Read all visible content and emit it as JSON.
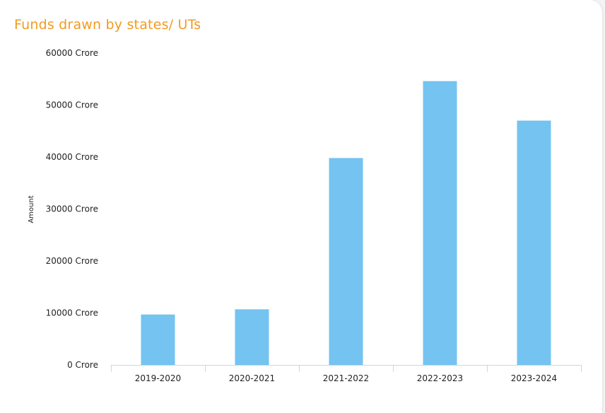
{
  "card": {
    "title": "Funds drawn by states/ UTs"
  },
  "colors": {
    "title": "#f39a1e",
    "bar": "#74c3f0",
    "axis": "#c9d7e6"
  },
  "chart_data": {
    "type": "bar",
    "title": "Funds drawn by states/ UTs",
    "xlabel": "",
    "ylabel": "Amount",
    "categories": [
      "2019-2020",
      "2020-2021",
      "2021-2022",
      "2022-2023",
      "2023-2024"
    ],
    "values": [
      9700,
      10700,
      39800,
      54600,
      47000
    ],
    "ylim": [
      0,
      60000
    ],
    "yticks": [
      {
        "value": 60000,
        "label": "60000 Crore"
      },
      {
        "value": 50000,
        "label": "50000 Crore"
      },
      {
        "value": 40000,
        "label": "40000 Crore"
      },
      {
        "value": 30000,
        "label": "30000 Crore"
      },
      {
        "value": 20000,
        "label": "20000 Crore"
      },
      {
        "value": 10000,
        "label": "10000 Crore"
      },
      {
        "value": 0,
        "label": "0 Crore"
      }
    ],
    "grid": false,
    "legend": "none"
  }
}
